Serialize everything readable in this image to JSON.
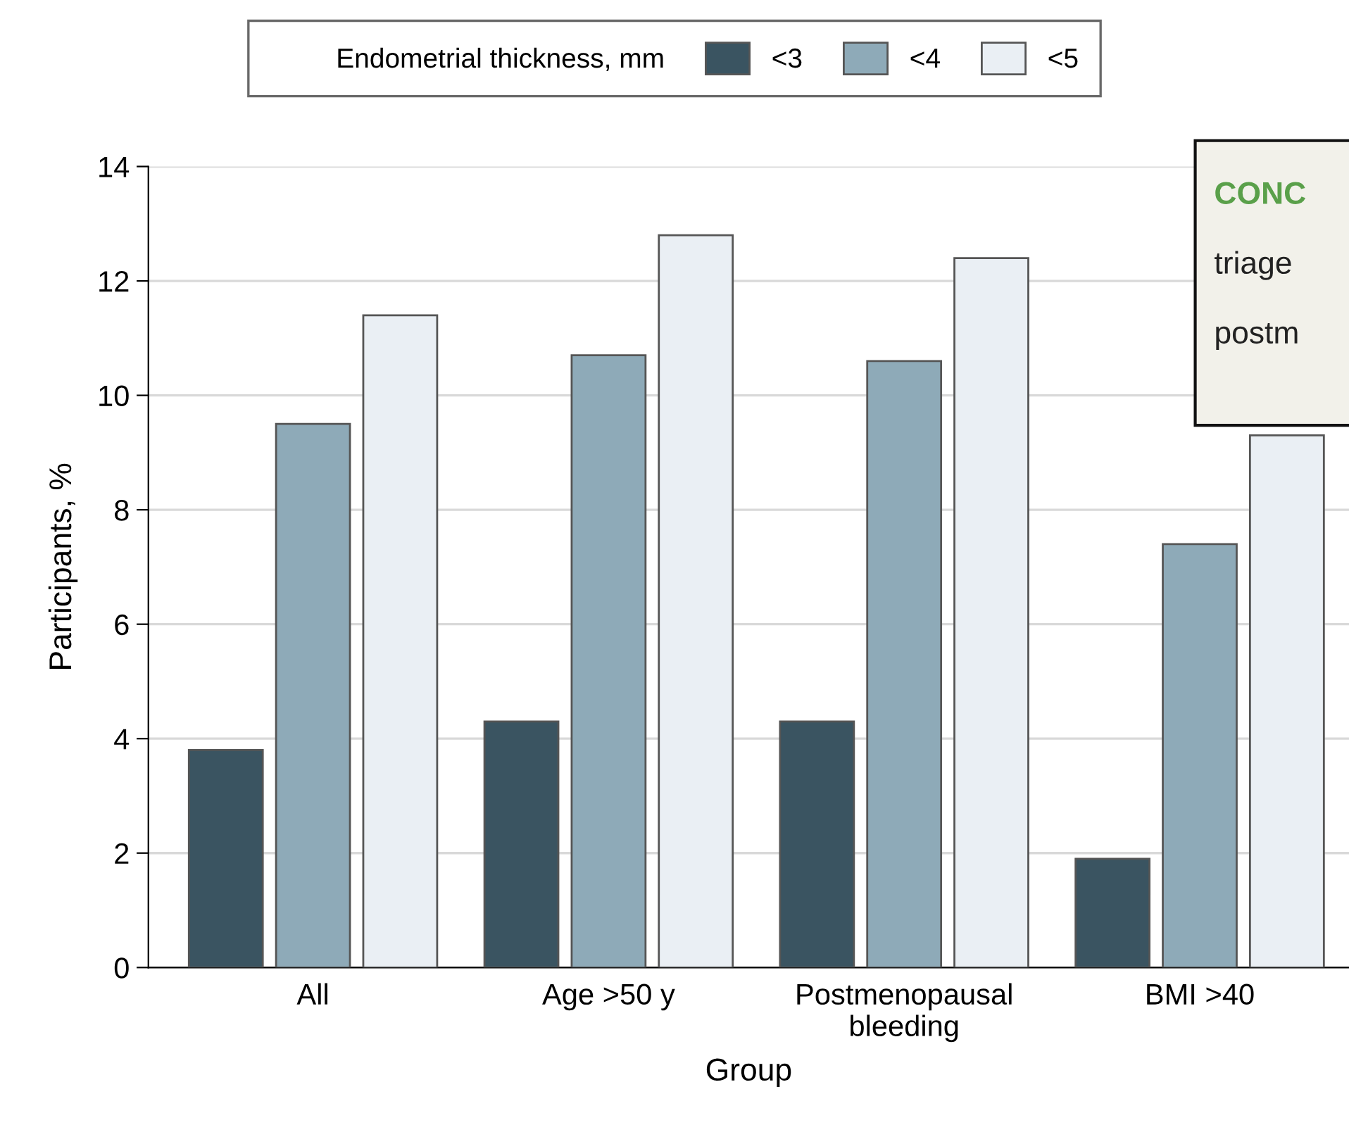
{
  "chart_data": {
    "type": "bar",
    "xlabel": "Group",
    "ylabel": "Participants, %",
    "legend_title": "Endometrial thickness, mm",
    "categories": [
      "All",
      "Age >50 y",
      "Postmenopausal\nbleeding",
      "BMI >40"
    ],
    "series": [
      {
        "name": "<3",
        "color": "#3a5461",
        "values": [
          3.8,
          4.3,
          4.3,
          1.9
        ]
      },
      {
        "name": "<4",
        "color": "#8eaab8",
        "values": [
          9.5,
          10.7,
          10.6,
          7.4
        ]
      },
      {
        "name": "<5",
        "color": "#eaeff4",
        "values": [
          11.4,
          12.8,
          12.4,
          9.3
        ]
      }
    ],
    "ylim": [
      0,
      14
    ],
    "yticks": [
      0,
      2,
      4,
      6,
      8,
      10,
      12,
      14
    ],
    "grid": "y",
    "legend": "top",
    "annotations": [
      "CONC",
      "triage",
      "postm"
    ]
  }
}
